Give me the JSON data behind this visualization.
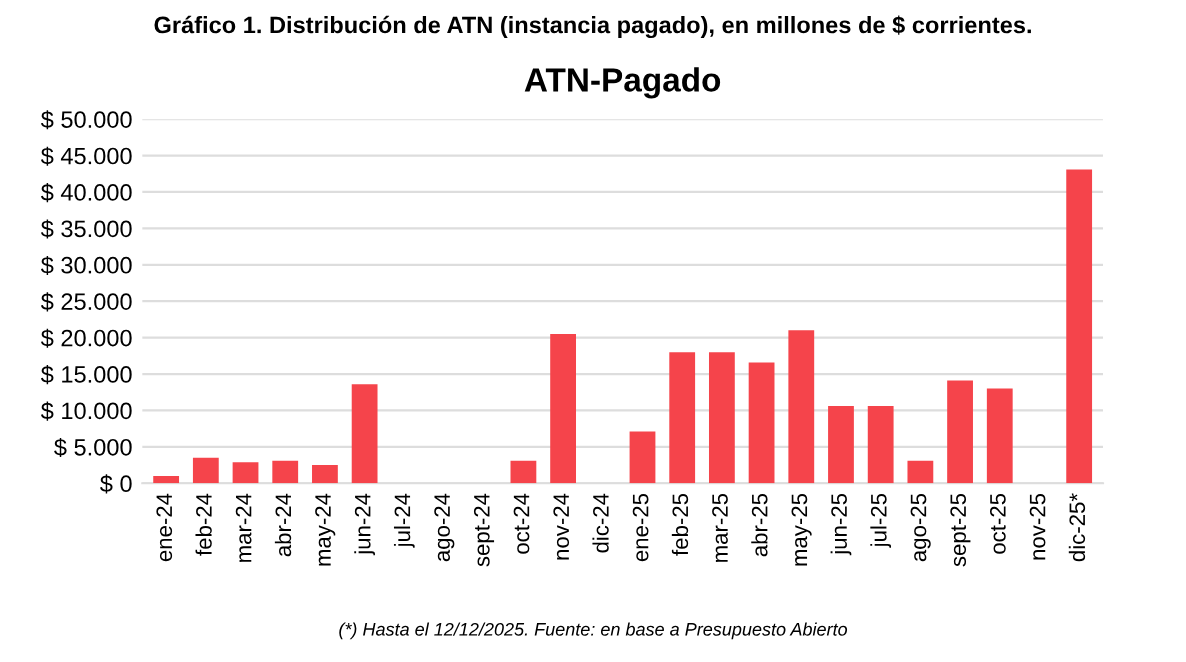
{
  "chart_data": {
    "type": "bar",
    "title": "ATN-Pagado",
    "subtitle": "Gráfico 1. Distribución de ATN (instancia pagado), en millones de $ corrientes.",
    "categories": [
      "ene-24",
      "feb-24",
      "mar-24",
      "abr-24",
      "may-24",
      "jun-24",
      "jul-24",
      "ago-24",
      "sept-24",
      "oct-24",
      "nov-24",
      "dic-24",
      "ene-25",
      "feb-25",
      "mar-25",
      "abr-25",
      "may-25",
      "jun-25",
      "jul-25",
      "ago-25",
      "sept-25",
      "oct-25",
      "nov-25",
      "dic-25*"
    ],
    "values": [
      1000,
      3500,
      2900,
      3100,
      2500,
      13600,
      0,
      0,
      0,
      3100,
      20500,
      0,
      7100,
      18000,
      18000,
      16600,
      21000,
      10600,
      10600,
      3100,
      14100,
      13000,
      0,
      43100
    ],
    "color": "#f5444b",
    "ylim": [
      0,
      50000
    ],
    "yticks": [
      {
        "value": 0,
        "label": "$ 0"
      },
      {
        "value": 5000,
        "label": "$ 5.000"
      },
      {
        "value": 10000,
        "label": "$ 10.000"
      },
      {
        "value": 15000,
        "label": "$ 15.000"
      },
      {
        "value": 20000,
        "label": "$ 20.000"
      },
      {
        "value": 25000,
        "label": "$ 25.000"
      },
      {
        "value": 30000,
        "label": "$ 30.000"
      },
      {
        "value": 35000,
        "label": "$ 35.000"
      },
      {
        "value": 40000,
        "label": "$ 40.000"
      },
      {
        "value": 45000,
        "label": "$ 45.000"
      },
      {
        "value": 50000,
        "label": "$ 50.000"
      }
    ],
    "grid": "y",
    "annotations": [
      "(*) Hasta el 12/12/2025. Fuente: en base a Presupuesto Abierto"
    ]
  }
}
